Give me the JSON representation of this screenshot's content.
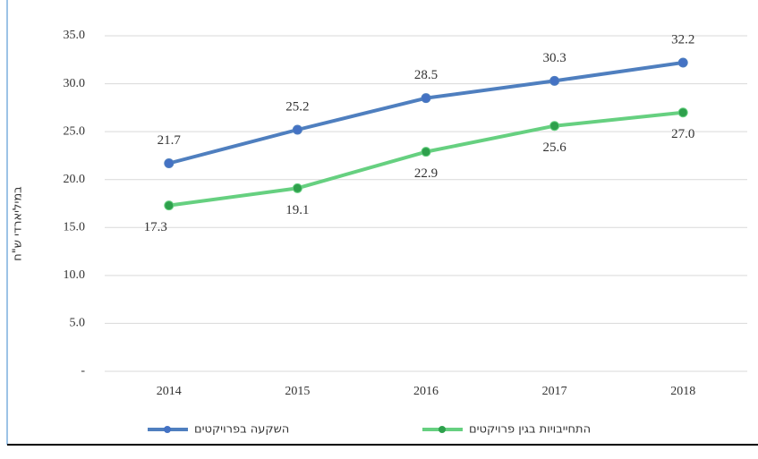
{
  "chart_data": {
    "type": "line",
    "y_label": "במיליארדי ש\"ח",
    "categories": [
      "2014",
      "2015",
      "2016",
      "2017",
      "2018"
    ],
    "series": [
      {
        "name": "השקעה בפרויקטים",
        "color": "#4f7fbf",
        "values": [
          21.7,
          25.2,
          28.5,
          30.3,
          32.2
        ],
        "value_labels": [
          "21.7",
          "25.2",
          "28.5",
          "30.3",
          "32.2"
        ]
      },
      {
        "name": "התחייבויות בגין פרויקטים",
        "color": "#66d080",
        "values": [
          17.3,
          19.1,
          22.9,
          25.6,
          27.0
        ],
        "value_labels": [
          "17.3",
          "19.1",
          "22.9",
          "25.6",
          "27.0"
        ]
      }
    ],
    "ylim": [
      0,
      35
    ],
    "yticks": [
      {
        "value": 0,
        "label": "-"
      },
      {
        "value": 5,
        "label": "5.0"
      },
      {
        "value": 10,
        "label": "10.0"
      },
      {
        "value": 15,
        "label": "15.0"
      },
      {
        "value": 20,
        "label": "20.0"
      },
      {
        "value": 25,
        "label": "25.0"
      },
      {
        "value": 30,
        "label": "30.0"
      },
      {
        "value": 35,
        "label": "35.0"
      }
    ],
    "grid": true,
    "legend": "bottom"
  }
}
